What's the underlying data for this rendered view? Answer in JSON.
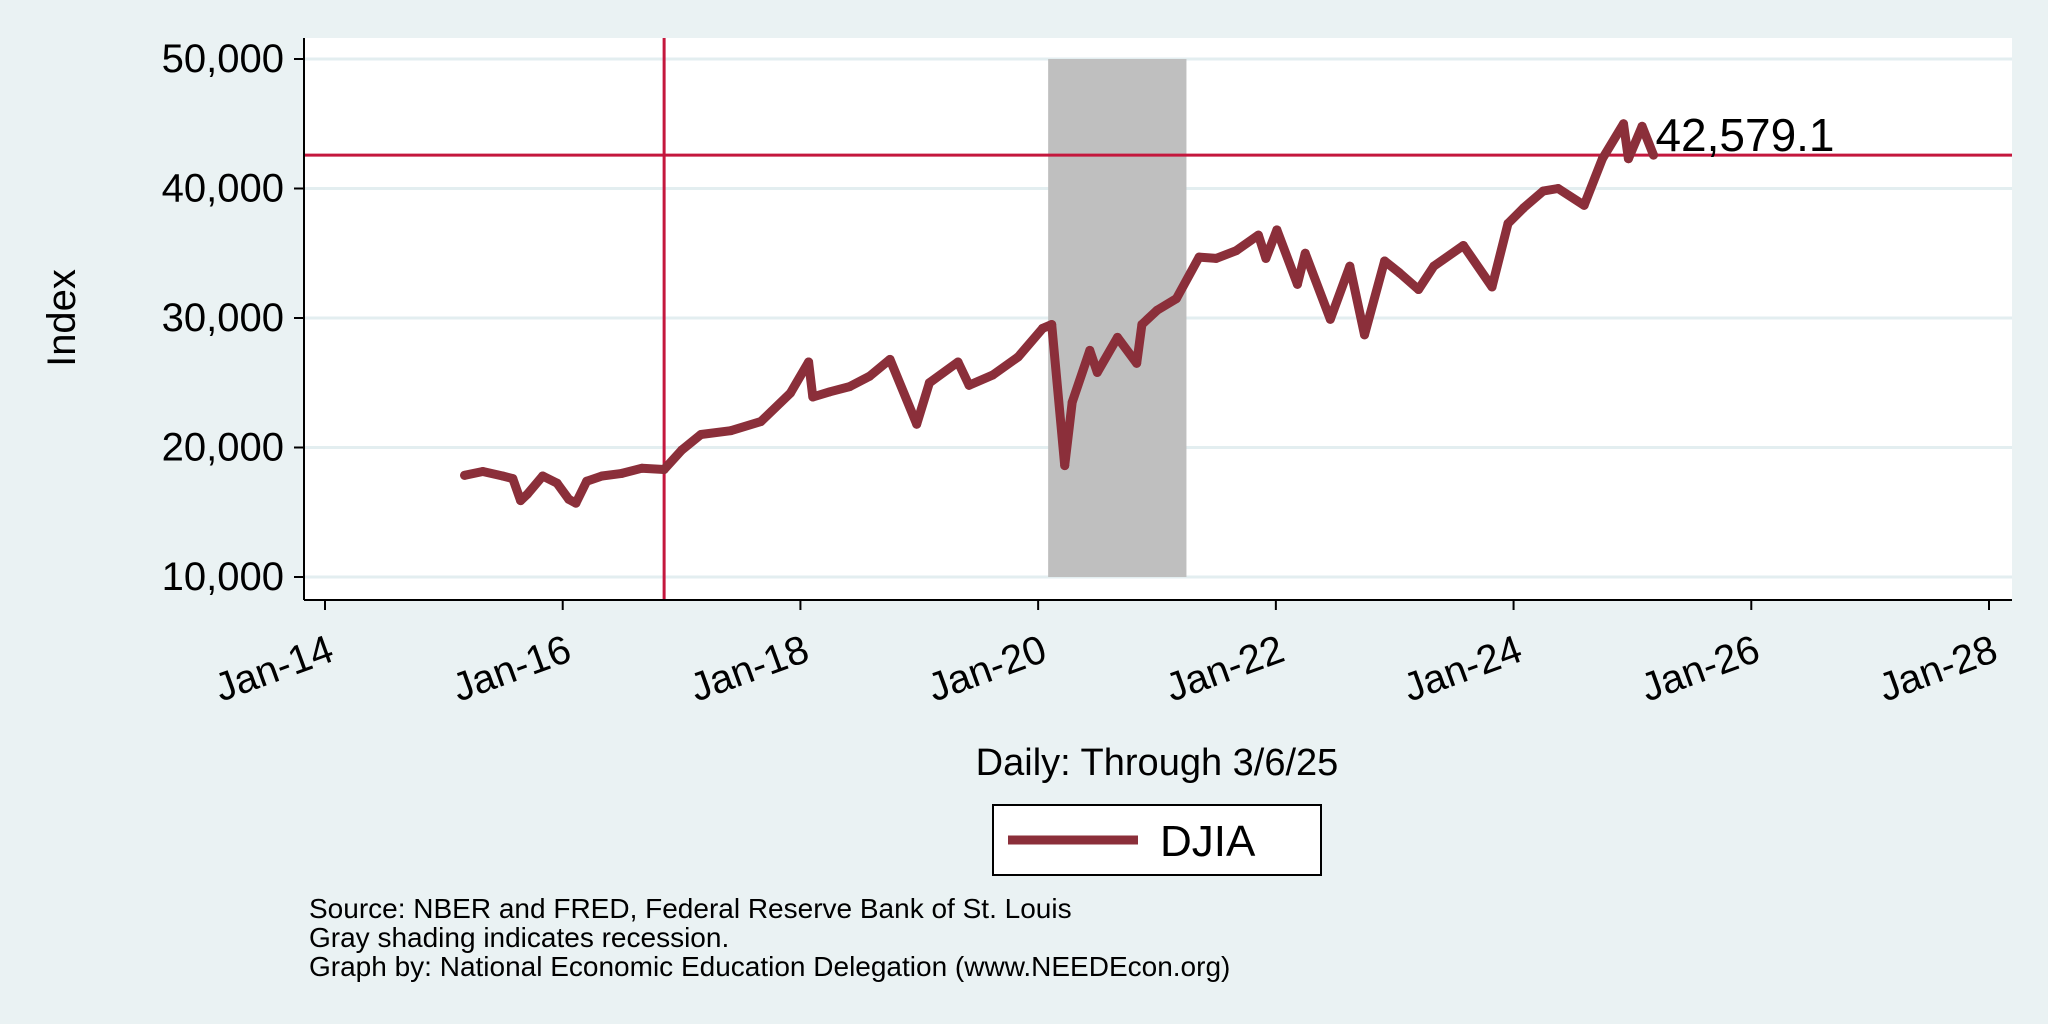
{
  "chart_data": {
    "type": "line",
    "title": "",
    "xlabel": "Daily: Through 3/6/25",
    "ylabel": "Index",
    "x_ticks": [
      "Jan-14",
      "Jan-16",
      "Jan-18",
      "Jan-20",
      "Jan-22",
      "Jan-24",
      "Jan-26",
      "Jan-28"
    ],
    "x_range": [
      "2014-01-01",
      "2028-01-01"
    ],
    "y_ticks": [
      "10,000",
      "20,000",
      "30,000",
      "40,000",
      "50,000"
    ],
    "ylim": [
      10000,
      50000
    ],
    "grid": true,
    "legend_position": "bottom-center",
    "recession_shading": {
      "start": "2020-02-01",
      "end": "2021-04-01"
    },
    "reference_lines": {
      "vertical_date": "2016-11-08",
      "horizontal_value": 42579.1
    },
    "end_label": "42,579.1",
    "series": [
      {
        "name": "DJIA",
        "x": [
          "2015-03-06",
          "2015-05-01",
          "2015-07-01",
          "2015-08-01",
          "2015-08-25",
          "2015-09-15",
          "2015-11-01",
          "2015-12-15",
          "2016-01-20",
          "2016-02-11",
          "2016-03-15",
          "2016-05-01",
          "2016-07-01",
          "2016-09-01",
          "2016-11-08",
          "2017-01-01",
          "2017-03-01",
          "2017-06-01",
          "2017-09-01",
          "2017-12-01",
          "2018-01-26",
          "2018-02-08",
          "2018-04-01",
          "2018-06-01",
          "2018-08-01",
          "2018-10-03",
          "2018-12-24",
          "2019-02-01",
          "2019-04-30",
          "2019-06-03",
          "2019-08-15",
          "2019-11-01",
          "2020-01-15",
          "2020-02-12",
          "2020-03-23",
          "2020-04-15",
          "2020-06-08",
          "2020-07-01",
          "2020-09-01",
          "2020-10-30",
          "2020-11-15",
          "2021-01-01",
          "2021-03-01",
          "2021-05-10",
          "2021-07-01",
          "2021-09-01",
          "2021-11-08",
          "2021-12-01",
          "2022-01-04",
          "2022-03-08",
          "2022-04-01",
          "2022-06-17",
          "2022-08-16",
          "2022-09-30",
          "2022-12-01",
          "2023-01-15",
          "2023-03-15",
          "2023-05-01",
          "2023-07-31",
          "2023-10-27",
          "2023-12-15",
          "2024-02-01",
          "2024-04-01",
          "2024-05-17",
          "2024-08-05",
          "2024-09-30",
          "2024-12-04",
          "2024-12-19",
          "2025-01-30",
          "2025-03-06"
        ],
        "values": [
          17850,
          18150,
          17800,
          17600,
          15900,
          16400,
          17800,
          17250,
          16000,
          15700,
          17400,
          17800,
          18000,
          18400,
          18300,
          19800,
          21000,
          21300,
          22000,
          24200,
          26600,
          23900,
          24300,
          24700,
          25500,
          26800,
          21800,
          25000,
          26600,
          24800,
          25600,
          27000,
          29200,
          29500,
          18600,
          23500,
          27500,
          25800,
          28500,
          26500,
          29500,
          30600,
          31500,
          34700,
          34600,
          35200,
          36400,
          34600,
          36800,
          32600,
          35000,
          29900,
          34000,
          28700,
          34400,
          33500,
          32200,
          34000,
          35600,
          32400,
          37300,
          38500,
          39800,
          40000,
          38700,
          42300,
          45000,
          42300,
          44800,
          42579.1
        ]
      }
    ]
  },
  "notes": {
    "source": "Source: NBER and FRED, Federal Reserve Bank of St. Louis",
    "shading": "Gray shading indicates recession.",
    "credit": "Graph by: National Economic Education Delegation (www.NEEDEcon.org)"
  },
  "colors": {
    "background": "#eaf2f3",
    "plot_area": "#ffffff",
    "series_line": "#8b2f3a",
    "reference_line": "#c4173d",
    "recession": "#bfbfbf",
    "gridline": "#e3eef0"
  }
}
